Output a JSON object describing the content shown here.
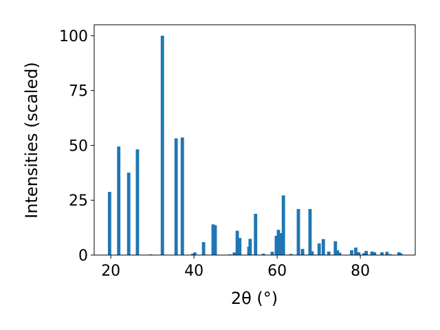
{
  "chart_data": {
    "type": "bar",
    "x_label": "2θ (°)",
    "y_label": "Intensities (scaled)",
    "x": [
      19.7,
      21.9,
      24.3,
      26.4,
      29.6,
      32.4,
      35.7,
      37.2,
      39.7,
      40.2,
      42.3,
      44.6,
      45.1,
      48.6,
      49.7,
      50.4,
      51.0,
      53.2,
      53.5,
      54.8,
      56.7,
      58.8,
      59.8,
      60.3,
      60.9,
      61.5,
      63.3,
      65.1,
      66.1,
      67.9,
      68.4,
      70.1,
      71.1,
      72.4,
      74.0,
      74.5,
      75.0,
      77.9,
      78.9,
      79.6,
      80.9,
      81.4,
      82.8,
      83.4,
      85.2,
      86.4,
      87.2,
      89.3,
      89.7
    ],
    "values": [
      28.8,
      49.5,
      37.6,
      48.2,
      0.3,
      100,
      53.2,
      53.6,
      0.6,
      1.2,
      5.9,
      14,
      13.6,
      0.3,
      1.2,
      11.1,
      7.8,
      3.8,
      7.4,
      18.8,
      0.6,
      1.5,
      8.8,
      11.5,
      10,
      27.2,
      0.5,
      21,
      2.8,
      21,
      1.7,
      5.3,
      7.3,
      1.6,
      6.3,
      2.2,
      1.1,
      2.2,
      3.4,
      1.3,
      0.9,
      1.9,
      1.6,
      1.3,
      1.3,
      1.5,
      0.4,
      1.3,
      0.8
    ],
    "color": "#1f77b4",
    "xlim": [
      16,
      93.2
    ],
    "xticks": [
      20,
      40,
      60,
      80
    ],
    "ylim": [
      0,
      105
    ],
    "yticks": [
      0,
      25,
      50,
      75,
      100
    ],
    "grid": false
  }
}
